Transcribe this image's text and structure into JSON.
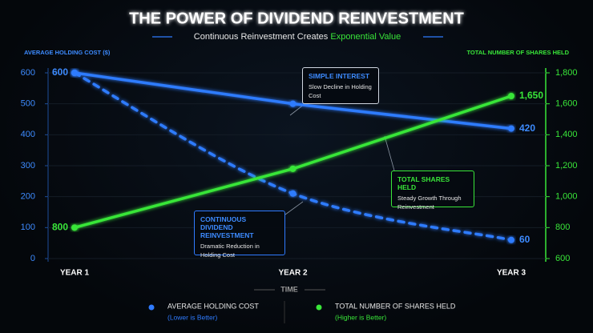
{
  "chart_data": {
    "type": "line",
    "title": "THE POWER OF DIVIDEND REINVESTMENT",
    "subtitle": "Continuous Reinvestment Creates",
    "subtitle_highlight": "Exponential Value",
    "y_label": "AVERAGE HOLDING COST ($)",
    "y2_label": "TOTAL NUMBER OF SHARES HELD",
    "x_label": "TIME",
    "categories": [
      "YEAR 1",
      "YEAR 2",
      "YEAR 3"
    ],
    "ylim": [
      0,
      600
    ],
    "yticks": [
      0,
      100,
      200,
      300,
      400,
      500,
      600
    ],
    "y2lim": [
      600,
      1800
    ],
    "y2ticks": [
      600,
      800,
      {
        "value": 1000,
        "label": "1,000"
      },
      {
        "value": 1200,
        "label": "1,200"
      },
      {
        "value": 1400,
        "label": "1,400"
      },
      {
        "value": 1600,
        "label": "1,600"
      },
      {
        "value": 1800,
        "label": "1,800"
      }
    ],
    "grid": true,
    "series": [
      {
        "name": "AVERAGE HOLDING COST",
        "note": "(Lower is Better)",
        "color": "#2f7bff",
        "values": [
          600,
          500,
          420
        ],
        "value_labels": [
          "600",
          null,
          "420"
        ]
      },
      {
        "color": "#2f7bff",
        "dashed": true,
        "values": [
          600,
          210,
          60
        ],
        "value_labels": [
          null,
          null,
          "60"
        ]
      },
      {
        "name": "TOTAL NUMBER OF SHARES HELD",
        "note": "(Higher is Better)",
        "color": "#39e639",
        "axis": "y2",
        "values": [
          800,
          1180,
          1650
        ],
        "value_labels": [
          "800",
          null,
          "1,650"
        ]
      }
    ],
    "annotations": [
      {
        "title": "SIMPLE INTEREST",
        "text": "Slow Decline in Holding Cost"
      },
      {
        "title": "TOTAL SHARES HELD",
        "text": "Steady Growth Through Reinvestment"
      },
      {
        "title": "CONTINUOUS DIVIDEND REINVESTMENT",
        "text": "Dramatic Reduction in Holding Cost"
      }
    ]
  }
}
